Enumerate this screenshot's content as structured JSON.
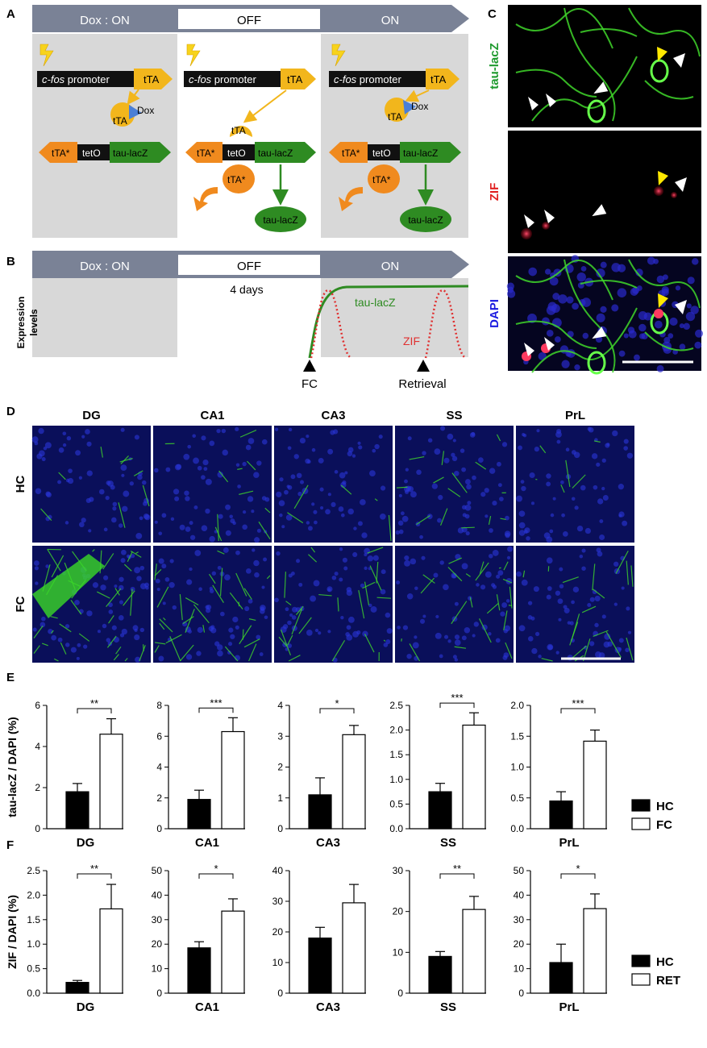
{
  "panel_labels": {
    "a": "A",
    "b": "B",
    "c": "C",
    "d": "D",
    "e": "E",
    "f": "F"
  },
  "panel_a": {
    "phases": [
      "Dox : ON",
      "OFF",
      "ON"
    ],
    "promoter_italic": "c-fos",
    "promoter_rest": " promoter",
    "tta": "tTA",
    "dox": "Dox",
    "tta_star": "tTA*",
    "teto": "tetO",
    "taulacz": "tau-lacZ"
  },
  "panel_b": {
    "phases": [
      "Dox : ON",
      "OFF",
      "ON"
    ],
    "duration": "4 days",
    "ylabel_line1": "Expression",
    "ylabel_line2": "levels",
    "curve_taulacz": "tau-lacZ",
    "curve_zif": "ZIF",
    "event_fc": "FC",
    "event_retrieval": "Retrieval"
  },
  "panel_c": {
    "channels": [
      "tau-lacZ",
      "ZIF",
      "DAPI"
    ],
    "channel_colors": [
      "#1e9a2e",
      "#e02020",
      "#1a1ae0"
    ]
  },
  "panel_d": {
    "columns": [
      "DG",
      "CA1",
      "CA3",
      "SS",
      "PrL"
    ],
    "rows": [
      "HC",
      "FC"
    ],
    "hc_density": [
      0.2,
      0.25,
      0.12,
      0.35,
      0.15
    ],
    "fc_density": [
      0.95,
      0.8,
      0.6,
      0.55,
      0.45
    ]
  },
  "colors": {
    "arrow_gray": "#7a8296",
    "phase_bg": "#d8d8d8",
    "yellow": "#f2b61c",
    "orange": "#f08a1e",
    "green": "#2e8b22",
    "dox_blue": "#4a7fd6",
    "zif_red": "#e03030",
    "hc_bar": "#000000",
    "treat_bar": "#ffffff"
  },
  "chart_data": [
    {
      "type": "bar",
      "panel": "E",
      "ylabel": "tau-lacZ / DAPI (%)",
      "legend": [
        "HC",
        "FC"
      ],
      "legend_placement": "right",
      "groups": [
        {
          "region": "DG",
          "ylim": [
            0,
            6
          ],
          "ticks": [
            0,
            2,
            4,
            6
          ],
          "series": [
            {
              "name": "HC",
              "value": 1.8,
              "error": 0.4
            },
            {
              "name": "FC",
              "value": 4.6,
              "error": 0.75
            }
          ],
          "significance": "**"
        },
        {
          "region": "CA1",
          "ylim": [
            0,
            8
          ],
          "ticks": [
            0,
            2,
            4,
            6,
            8
          ],
          "series": [
            {
              "name": "HC",
              "value": 1.9,
              "error": 0.6
            },
            {
              "name": "FC",
              "value": 6.3,
              "error": 0.9
            }
          ],
          "significance": "***"
        },
        {
          "region": "CA3",
          "ylim": [
            0,
            4
          ],
          "ticks": [
            0,
            1,
            2,
            3,
            4
          ],
          "series": [
            {
              "name": "HC",
              "value": 1.1,
              "error": 0.55
            },
            {
              "name": "FC",
              "value": 3.05,
              "error": 0.3
            }
          ],
          "significance": "*"
        },
        {
          "region": "SS",
          "ylim": [
            0,
            2.5
          ],
          "ticks": [
            0.0,
            0.5,
            1.0,
            1.5,
            2.0,
            2.5
          ],
          "tick_labels": [
            "0.0",
            "0.5",
            "1.0",
            "1.5",
            "2.0",
            "2.5"
          ],
          "series": [
            {
              "name": "HC",
              "value": 0.75,
              "error": 0.17
            },
            {
              "name": "FC",
              "value": 2.1,
              "error": 0.25
            }
          ],
          "significance": "***"
        },
        {
          "region": "PrL",
          "ylim": [
            0,
            2.0
          ],
          "ticks": [
            0.0,
            0.5,
            1.0,
            1.5,
            2.0
          ],
          "tick_labels": [
            "0.0",
            "0.5",
            "1.0",
            "1.5",
            "2.0"
          ],
          "series": [
            {
              "name": "HC",
              "value": 0.45,
              "error": 0.15
            },
            {
              "name": "FC",
              "value": 1.42,
              "error": 0.18
            }
          ],
          "significance": "***"
        }
      ]
    },
    {
      "type": "bar",
      "panel": "F",
      "ylabel": "ZIF / DAPI (%)",
      "legend": [
        "HC",
        "RET"
      ],
      "legend_placement": "right",
      "groups": [
        {
          "region": "DG",
          "ylim": [
            0,
            2.5
          ],
          "ticks": [
            0.0,
            0.5,
            1.0,
            1.5,
            2.0,
            2.5
          ],
          "tick_labels": [
            "0.0",
            "0.5",
            "1.0",
            "1.5",
            "2.0",
            "2.5"
          ],
          "series": [
            {
              "name": "HC",
              "value": 0.22,
              "error": 0.04
            },
            {
              "name": "RET",
              "value": 1.72,
              "error": 0.5
            }
          ],
          "significance": "**"
        },
        {
          "region": "CA1",
          "ylim": [
            0,
            50
          ],
          "ticks": [
            0,
            10,
            20,
            30,
            40,
            50
          ],
          "series": [
            {
              "name": "HC",
              "value": 18.5,
              "error": 2.5
            },
            {
              "name": "RET",
              "value": 33.5,
              "error": 5
            }
          ],
          "significance": "*"
        },
        {
          "region": "CA3",
          "ylim": [
            0,
            40
          ],
          "ticks": [
            0,
            10,
            20,
            30,
            40
          ],
          "series": [
            {
              "name": "HC",
              "value": 18,
              "error": 3.5
            },
            {
              "name": "RET",
              "value": 29.5,
              "error": 6
            }
          ],
          "significance": ""
        },
        {
          "region": "SS",
          "ylim": [
            0,
            30
          ],
          "ticks": [
            0,
            10,
            20,
            30
          ],
          "series": [
            {
              "name": "HC",
              "value": 9,
              "error": 1.2
            },
            {
              "name": "RET",
              "value": 20.5,
              "error": 3.2
            }
          ],
          "significance": "**"
        },
        {
          "region": "PrL",
          "ylim": [
            0,
            50
          ],
          "ticks": [
            0,
            10,
            20,
            30,
            40,
            50
          ],
          "series": [
            {
              "name": "HC",
              "value": 12.5,
              "error": 7.5
            },
            {
              "name": "RET",
              "value": 34.5,
              "error": 6
            }
          ],
          "significance": "*"
        }
      ]
    }
  ]
}
